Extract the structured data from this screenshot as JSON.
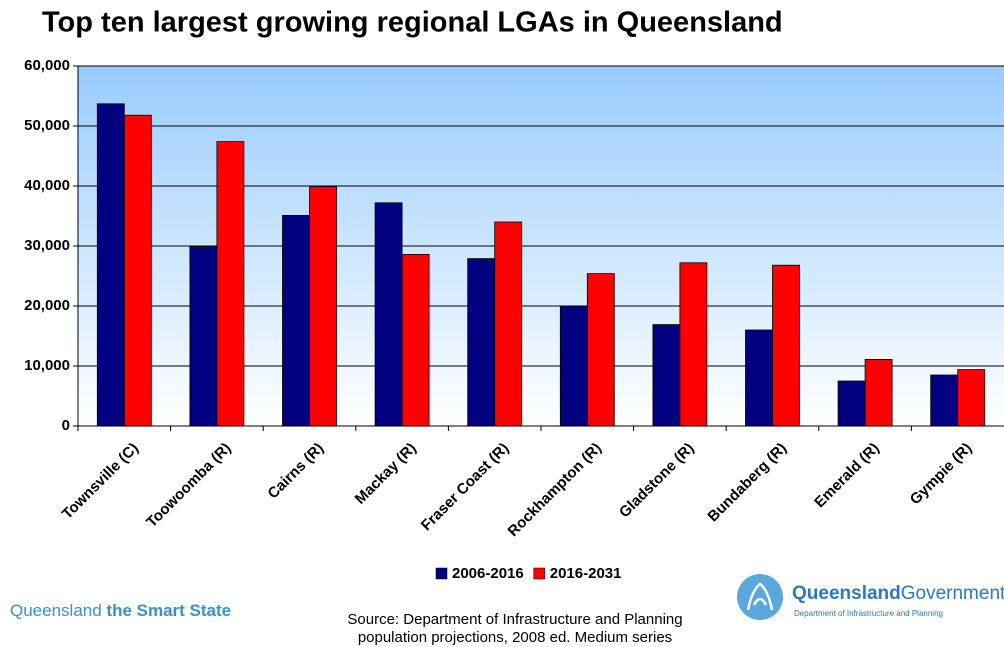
{
  "chart_data": {
    "type": "bar",
    "title": "Top ten largest growing regional LGAs in Queensland",
    "categories": [
      "Townsville (C)",
      "Toowoomba (R)",
      "Cairns (R)",
      "Mackay (R)",
      "Fraser Coast (R)",
      "Rockhampton (R)",
      "Gladstone (R)",
      "Bundaberg (R)",
      "Emerald (R)",
      "Gympie (R)"
    ],
    "series": [
      {
        "name": "2006-2016",
        "color": "#000080",
        "values": [
          53700,
          29900,
          35100,
          37200,
          27900,
          20000,
          16900,
          16000,
          7500,
          8500
        ]
      },
      {
        "name": "2016-2031",
        "color": "#ff0000",
        "values": [
          51800,
          47400,
          39900,
          28600,
          34000,
          25400,
          27200,
          26800,
          11100,
          9400
        ]
      }
    ],
    "ylim": [
      0,
      60000
    ],
    "yticks": [
      0,
      {
        "value": 10000,
        "label": "10,000"
      },
      {
        "value": 20000,
        "label": "20,000"
      },
      {
        "value": 30000,
        "label": "30,000"
      },
      {
        "value": 40000,
        "label": "40,000"
      },
      {
        "value": 50000,
        "label": "50,000"
      },
      {
        "value": 60000,
        "label": "60,000"
      }
    ],
    "grid": true,
    "legend": "bottom"
  },
  "branding": {
    "slogan_plain": "Queensland",
    "slogan_bold": "the Smart State"
  },
  "source": [
    "Source: Department of Infrastructure and Planning",
    "population projections, 2008 ed. Medium series"
  ],
  "logo": {
    "name_bold": "Queensland",
    "name_plain": "Government",
    "department": "Department of Infrastructure and Planning"
  }
}
